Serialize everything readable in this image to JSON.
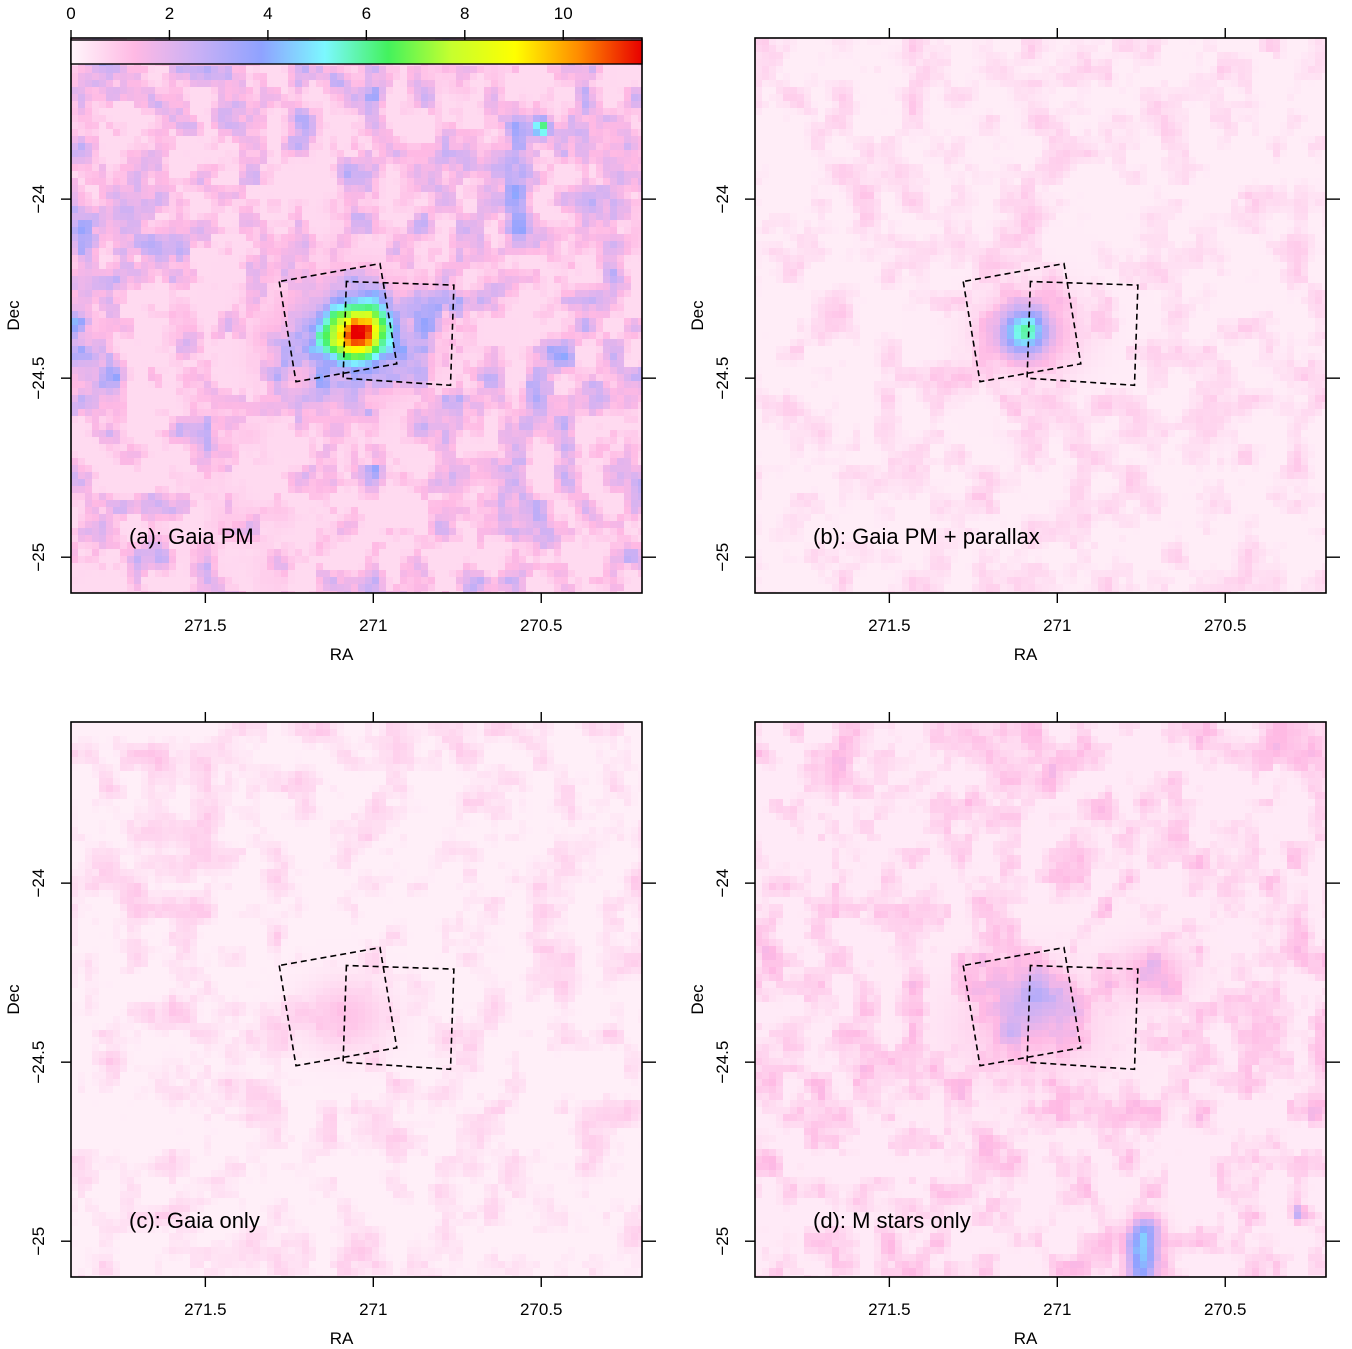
{
  "chart_data": [
    {
      "type": "heatmap",
      "annotation": "(a): Gaia PM",
      "xlabel": "RA",
      "ylabel": "Dec",
      "xlim": [
        271.9,
        270.2
      ],
      "ylim": [
        -25.1,
        -23.55
      ],
      "x_ticks": [
        271.5,
        271,
        270.5
      ],
      "x_tick_labels": [
        "271.5",
        "271",
        "270.5"
      ],
      "y_ticks": [
        -24,
        -24.5,
        -25
      ],
      "y_tick_labels": [
        "−24",
        "−24.5",
        "−25"
      ],
      "colorbar": {
        "range": [
          0,
          11.6
        ],
        "ticks": [
          0,
          2,
          4,
          6,
          8,
          10
        ],
        "tick_labels": [
          "0",
          "2",
          "4",
          "6",
          "8",
          "10"
        ],
        "colors": [
          "#fff6fb",
          "#ffb9e4",
          "#c9b0f5",
          "#8fa2ff",
          "#7cf8ff",
          "#43f25d",
          "#c6ff2e",
          "#ffff00",
          "#ff8c00",
          "#e80000"
        ]
      },
      "peak": {
        "ra": 271.05,
        "dec": -24.38,
        "value": 11.3
      },
      "footprints": [
        [
          [
            271.28,
            -24.23
          ],
          [
            271.23,
            -24.51
          ],
          [
            270.93,
            -24.46
          ],
          [
            270.98,
            -24.18
          ]
        ],
        [
          [
            271.08,
            -24.23
          ],
          [
            271.09,
            -24.5
          ],
          [
            270.77,
            -24.52
          ],
          [
            270.76,
            -24.24
          ]
        ]
      ]
    },
    {
      "type": "heatmap",
      "annotation": "(b): Gaia PM + parallax",
      "xlabel": "RA",
      "ylabel": "Dec",
      "xlim": [
        271.9,
        270.2
      ],
      "ylim": [
        -25.1,
        -23.55
      ],
      "x_ticks": [
        271.5,
        271,
        270.5
      ],
      "x_tick_labels": [
        "271.5",
        "271",
        "270.5"
      ],
      "y_ticks": [
        -24,
        -24.5,
        -25
      ],
      "y_tick_labels": [
        "−24",
        "−24.5",
        "−25"
      ],
      "peak": {
        "ra": 271.1,
        "dec": -24.37,
        "value": 6.5
      },
      "footprints": [
        [
          [
            271.28,
            -24.23
          ],
          [
            271.23,
            -24.51
          ],
          [
            270.93,
            -24.46
          ],
          [
            270.98,
            -24.18
          ]
        ],
        [
          [
            271.08,
            -24.23
          ],
          [
            271.09,
            -24.5
          ],
          [
            270.77,
            -24.52
          ],
          [
            270.76,
            -24.24
          ]
        ]
      ]
    },
    {
      "type": "heatmap",
      "annotation": "(c): Gaia only",
      "xlabel": "RA",
      "ylabel": "Dec",
      "xlim": [
        271.9,
        270.2
      ],
      "ylim": [
        -25.1,
        -23.55
      ],
      "x_ticks": [
        271.5,
        271,
        270.5
      ],
      "x_tick_labels": [
        "271.5",
        "271",
        "270.5"
      ],
      "y_ticks": [
        -24,
        -24.5,
        -25
      ],
      "y_tick_labels": [
        "−24",
        "−24.5",
        "−25"
      ],
      "peak": {
        "ra": 271.08,
        "dec": -24.37,
        "value": 1.8
      },
      "footprints": [
        [
          [
            271.28,
            -24.23
          ],
          [
            271.23,
            -24.51
          ],
          [
            270.93,
            -24.46
          ],
          [
            270.98,
            -24.18
          ]
        ],
        [
          [
            271.08,
            -24.23
          ],
          [
            271.09,
            -24.5
          ],
          [
            270.77,
            -24.52
          ],
          [
            270.76,
            -24.24
          ]
        ]
      ]
    },
    {
      "type": "heatmap",
      "annotation": "(d): M stars only",
      "xlabel": "RA",
      "ylabel": "Dec",
      "xlim": [
        271.9,
        270.2
      ],
      "ylim": [
        -25.1,
        -23.55
      ],
      "x_ticks": [
        271.5,
        271,
        270.5
      ],
      "x_tick_labels": [
        "271.5",
        "271",
        "270.5"
      ],
      "y_ticks": [
        -24,
        -24.5,
        -25
      ],
      "y_tick_labels": [
        "−24",
        "−24.5",
        "−25"
      ],
      "peak": {
        "ra": 270.75,
        "dec": -25.06,
        "value": 4.5
      },
      "footprints": [
        [
          [
            271.28,
            -24.23
          ],
          [
            271.23,
            -24.51
          ],
          [
            270.93,
            -24.46
          ],
          [
            270.98,
            -24.18
          ]
        ],
        [
          [
            271.08,
            -24.23
          ],
          [
            271.09,
            -24.5
          ],
          [
            270.77,
            -24.52
          ],
          [
            270.76,
            -24.24
          ]
        ]
      ]
    }
  ]
}
